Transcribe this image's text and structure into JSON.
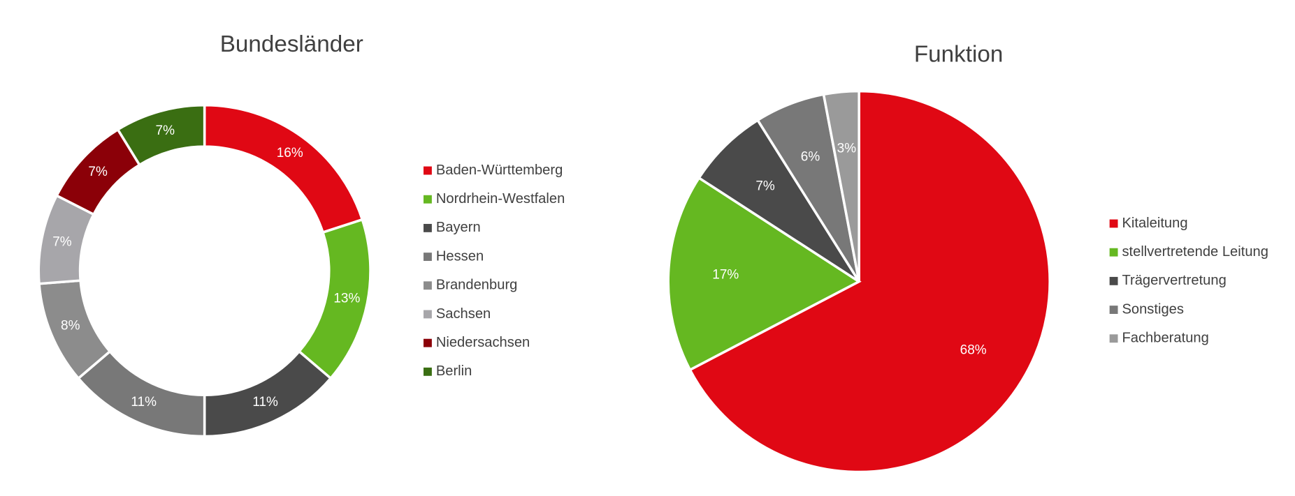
{
  "chart_data": [
    {
      "type": "doughnut",
      "title": "Bundesländer",
      "categories": [
        "Baden-Württemberg",
        "Nordrhein-Westfalen",
        "Bayern",
        "Hessen",
        "Brandenburg",
        "Sachsen",
        "Niedersachsen",
        "Berlin"
      ],
      "values": [
        16,
        13,
        11,
        11,
        8,
        7,
        7,
        7
      ],
      "value_labels": [
        "16%",
        "13%",
        "11%",
        "11%",
        "8%",
        "7%",
        "7%",
        "7%"
      ],
      "colors": [
        "#e00814",
        "#65b821",
        "#4a4a4a",
        "#787878",
        "#8c8c8c",
        "#a7a6aa",
        "#8b0008",
        "#3a6e12"
      ],
      "legend": "right"
    },
    {
      "type": "pie",
      "title": "Funktion",
      "categories": [
        "Kitaleitung",
        "stellvertretende Leitung",
        "Trägervertretung",
        "Sonstiges",
        "Fachberatung"
      ],
      "values": [
        68,
        17,
        7,
        6,
        3
      ],
      "value_labels": [
        "68%",
        "17%",
        "7%",
        "6%",
        "3%"
      ],
      "colors": [
        "#e00814",
        "#65b821",
        "#4a4a4a",
        "#787878",
        "#9a9a9a"
      ],
      "legend": "right"
    }
  ]
}
